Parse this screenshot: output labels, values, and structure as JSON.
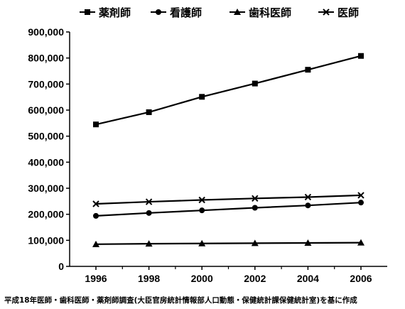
{
  "chart_data": {
    "type": "line",
    "x": [
      "1996",
      "1998",
      "2000",
      "2002",
      "2004",
      "2006"
    ],
    "series": [
      {
        "name": "薬剤師",
        "marker": "square",
        "values": [
          545000,
          592000,
          651000,
          702000,
          755000,
          808000
        ]
      },
      {
        "name": "看護師",
        "marker": "circle",
        "values": [
          194000,
          205000,
          215000,
          225000,
          234000,
          245000
        ]
      },
      {
        "name": "歯科医師",
        "marker": "triangle",
        "values": [
          85000,
          87000,
          88000,
          89000,
          90000,
          91000
        ]
      },
      {
        "name": "医師",
        "marker": "x",
        "values": [
          240000,
          248000,
          255000,
          261000,
          266000,
          273000
        ]
      }
    ],
    "y_ticks": [
      "0",
      "100,000",
      "200,000",
      "300,000",
      "400,000",
      "500,000",
      "600,000",
      "700,000",
      "800,000",
      "900,000"
    ],
    "ylim": [
      0,
      900000
    ],
    "grid": false,
    "legend_position": "top",
    "line_color": "#000000",
    "source_note": "平成18年医師・歯科医師・薬剤師調査(大臣官房統計情報部人口動態・保健統計課保健統計室)を基に作成"
  }
}
